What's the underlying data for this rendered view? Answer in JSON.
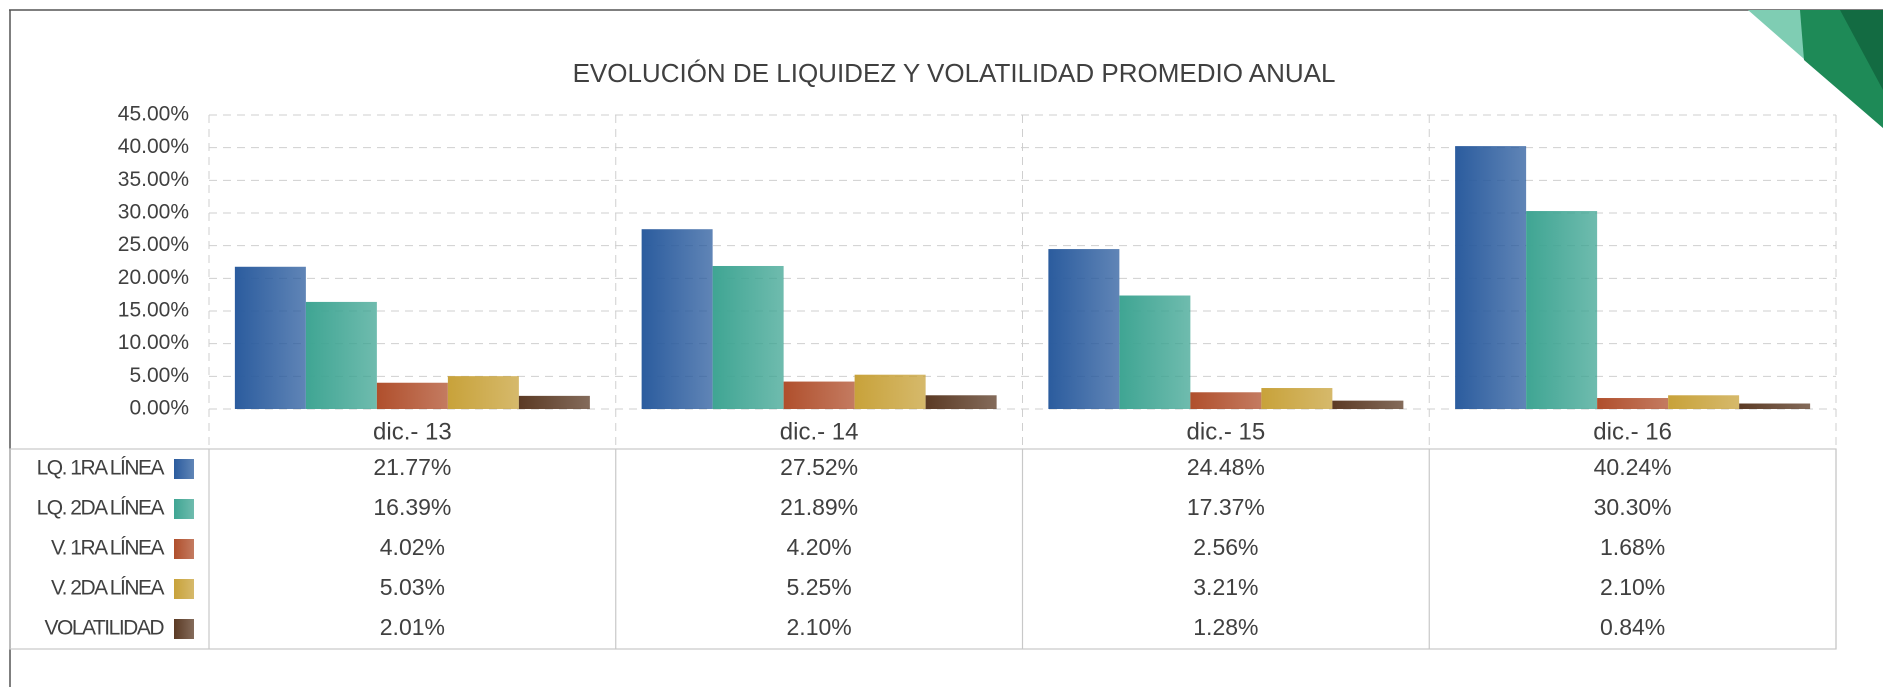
{
  "chart_data": {
    "type": "bar",
    "title": "EVOLUCIÓN DE LIQUIDEZ Y VOLATILIDAD PROMEDIO ANUAL",
    "categories": [
      "dic.- 13",
      "dic.- 14",
      "dic.- 15",
      "dic.- 16"
    ],
    "series": [
      {
        "name": "LQ. 1RA LÍNEA",
        "color": "#2b5c9e",
        "values": [
          21.77,
          27.52,
          24.48,
          40.24
        ],
        "value_labels": [
          "21.77%",
          "27.52%",
          "24.48%",
          "40.24%"
        ]
      },
      {
        "name": "LQ. 2DA LÍNEA",
        "color": "#3fa593",
        "values": [
          16.39,
          21.89,
          17.37,
          30.3
        ],
        "value_labels": [
          "16.39%",
          "21.89%",
          "17.37%",
          "30.30%"
        ]
      },
      {
        "name": "V. 1RA LÍNEA",
        "color": "#b04f2c",
        "values": [
          4.02,
          4.2,
          2.56,
          1.68
        ],
        "value_labels": [
          "4.02%",
          "4.20%",
          "2.56%",
          "1.68%"
        ]
      },
      {
        "name": "V. 2DA LÍNEA",
        "color": "#c8a23a",
        "values": [
          5.03,
          5.25,
          3.21,
          2.1
        ],
        "value_labels": [
          "5.03%",
          "5.25%",
          "3.21%",
          "2.10%"
        ]
      },
      {
        "name": "VOLATILIDAD",
        "color": "#5b3a24",
        "values": [
          2.01,
          2.1,
          1.28,
          0.84
        ],
        "value_labels": [
          "2.01%",
          "2.10%",
          "1.28%",
          "0.84%"
        ]
      }
    ],
    "ylim": [
      0,
      45
    ],
    "yticks": [
      {
        "value": 0,
        "label": "0.00%"
      },
      {
        "value": 5,
        "label": "5.00%"
      },
      {
        "value": 10,
        "label": "10.00%"
      },
      {
        "value": 15,
        "label": "15.00%"
      },
      {
        "value": 20,
        "label": "20.00%"
      },
      {
        "value": 25,
        "label": "25.00%"
      },
      {
        "value": 30,
        "label": "30.00%"
      },
      {
        "value": 35,
        "label": "35.00%"
      },
      {
        "value": 40,
        "label": "40.00%"
      },
      {
        "value": 45,
        "label": "45.00%"
      }
    ],
    "grid": true
  }
}
